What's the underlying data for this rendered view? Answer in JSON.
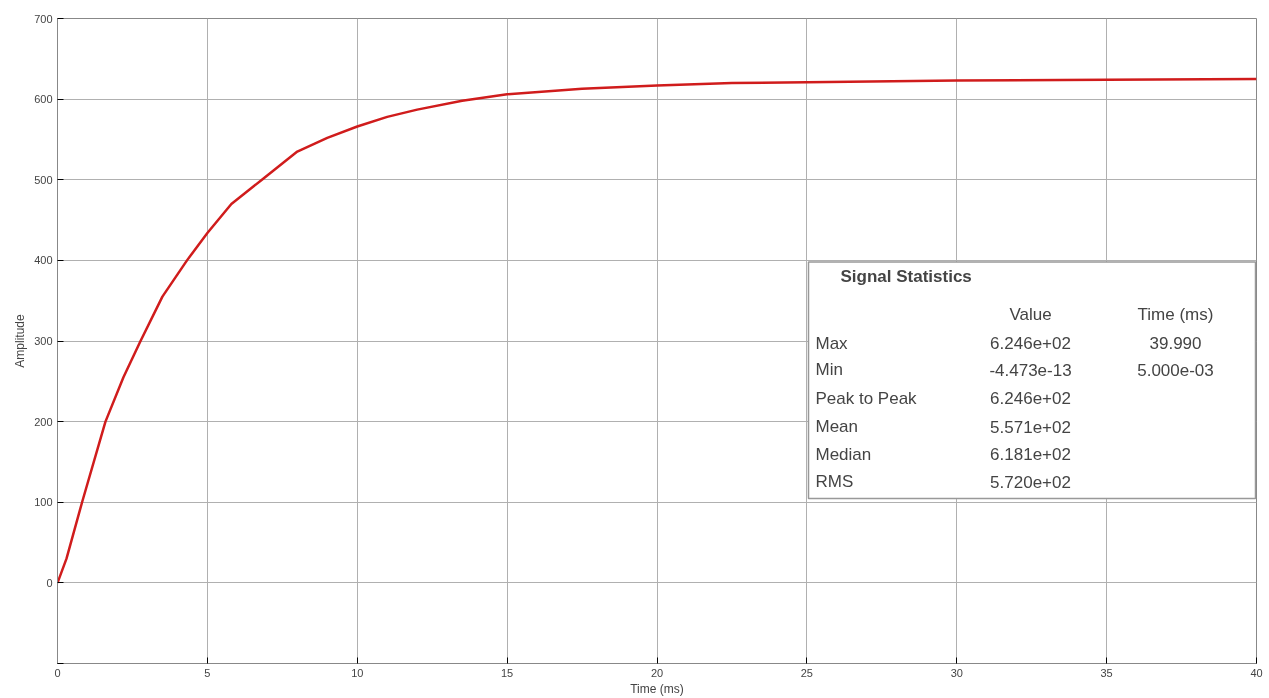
{
  "chart_data": {
    "type": "line",
    "xlabel": "Time (ms)",
    "ylabel": "Amplitude",
    "xlim": [
      0,
      40
    ],
    "ylim": [
      -100,
      700
    ],
    "xticks": [
      0,
      5,
      10,
      15,
      20,
      25,
      30,
      35,
      40
    ],
    "yticks": [
      {
        "value": -100,
        "label": null
      },
      0,
      100,
      200,
      300,
      400,
      500,
      600,
      700
    ],
    "grid": true,
    "series": [
      {
        "color": "#d01c1c",
        "x": [
          0,
          0.3,
          0.82,
          1.6,
          2.2,
          2.77,
          3.5,
          4.32,
          5,
          5.8,
          6.82,
          8,
          9,
          10,
          11,
          12,
          13.5,
          15,
          17.5,
          20,
          22.5,
          25,
          30,
          35,
          40
        ],
        "values": [
          0,
          30,
          100,
          200,
          255,
          300,
          355,
          400,
          434,
          470,
          500,
          535,
          552,
          566,
          578,
          587,
          598,
          606,
          613,
          617,
          620,
          621,
          623,
          624,
          625
        ]
      }
    ],
    "annotations": [
      "Signal Statistics",
      "Value",
      "Time (ms)",
      "Max",
      "6.246e+02",
      "39.990",
      "Min",
      "-4.473e-13",
      "5.000e-03",
      "Peak to Peak",
      "6.246e+02",
      "Mean",
      "5.571e+02",
      "Median",
      "6.181e+02",
      "RMS",
      "5.720e+02"
    ]
  }
}
